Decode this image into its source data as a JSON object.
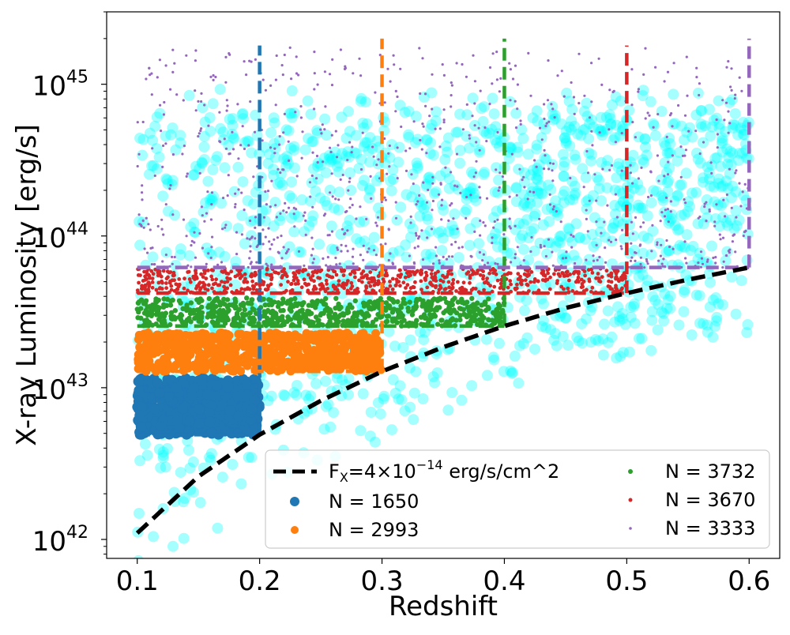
{
  "chart_data": {
    "type": "scatter",
    "xlabel": "Redshift",
    "ylabel": "X-ray Luminosity [erg/s]",
    "yscale": "log",
    "xlim": [
      0.075,
      0.625
    ],
    "ylim": [
      7.5e+41,
      3e+45
    ],
    "x_ticks": [
      0.1,
      0.2,
      0.3,
      0.4,
      0.5,
      0.6
    ],
    "x_tick_labels": [
      "0.1",
      "0.2",
      "0.3",
      "0.4",
      "0.5",
      "0.6"
    ],
    "y_ticks": [
      1e+42,
      1e+43,
      1e+44,
      1e+45
    ],
    "y_tick_labels": [
      {
        "base": "10",
        "exp": "42"
      },
      {
        "base": "10",
        "exp": "43"
      },
      {
        "base": "10",
        "exp": "44"
      },
      {
        "base": "10",
        "exp": "45"
      }
    ],
    "grid": false,
    "legend_position": "lower-right",
    "flux_limit_curve": {
      "label_main": "F",
      "label_sub": "X",
      "label_rest": "=4×10",
      "label_exp": "−14",
      "label_unit": " erg/s/cm^2",
      "style": "dashed",
      "color": "#000000",
      "z": [
        0.1,
        0.15,
        0.2,
        0.25,
        0.3,
        0.35,
        0.4,
        0.45,
        0.5,
        0.55,
        0.6
      ],
      "L": [
        1.1e+42,
        2.6e+42,
        4.9e+42,
        8.2e+42,
        1.28e+43,
        1.85e+43,
        2.55e+43,
        3.35e+43,
        4.2e+43,
        5.15e+43,
        6.2e+43
      ]
    },
    "background_sample": {
      "color": "#00ffff",
      "z_range": [
        0.1,
        0.6
      ]
    },
    "series": [
      {
        "legend": "N = 1650",
        "color": "#1f77b4",
        "z_range": [
          0.1,
          0.2
        ],
        "L_min": 4.9e+42,
        "L_max": 1.15e+43
      },
      {
        "legend": "N = 2993",
        "color": "#ff7f0e",
        "z_range": [
          0.1,
          0.3
        ],
        "L_min": 1.28e+43,
        "L_max": 2.3e+43
      },
      {
        "legend": "N = 3732",
        "color": "#2ca02c",
        "z_range": [
          0.1,
          0.4
        ],
        "L_min": 2.55e+43,
        "L_max": 3.9e+43
      },
      {
        "legend": "N = 3670",
        "color": "#d62728",
        "z_range": [
          0.1,
          0.5
        ],
        "L_min": 4.2e+43,
        "L_max": 6.1e+43
      },
      {
        "legend": "N = 3333",
        "color": "#9467bd",
        "z_range": [
          0.1,
          0.6
        ],
        "L_min": 6.2e+43,
        "L_max": 1.8e+45
      }
    ],
    "cut_lines": [
      {
        "color": "#1f77b4",
        "z": 0.2,
        "L_low": 4.9e+42,
        "L_top": 1.8e+45
      },
      {
        "color": "#ff7f0e",
        "z": 0.3,
        "L_low": 1.28e+43,
        "L_top": 2e+45
      },
      {
        "color": "#2ca02c",
        "z": 0.4,
        "L_low": 2.55e+43,
        "L_top": 2e+45
      },
      {
        "color": "#d62728",
        "z": 0.5,
        "L_low": 4.2e+43,
        "L_top": 1.8e+45
      },
      {
        "color": "#9467bd",
        "z": 0.6,
        "L_low": 6.2e+43,
        "L_top": 2e+45
      }
    ]
  }
}
